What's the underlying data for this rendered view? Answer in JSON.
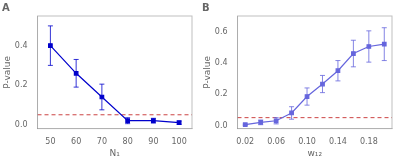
{
  "chart_data": [
    {
      "type": "line",
      "title": "A",
      "x": [
        50,
        60,
        70,
        80,
        90,
        100
      ],
      "series": [
        {
          "color": "#0000CC",
          "marker": "square",
          "line_style": "solid",
          "values": [
            0.4,
            0.26,
            0.14,
            0.02,
            0.02,
            0.01
          ],
          "errors": [
            0.1,
            0.07,
            0.065,
            0.015,
            0.012,
            0.008
          ]
        }
      ],
      "xlabel": "N₁",
      "ylabel": "P-value",
      "xlim": [
        45,
        105
      ],
      "ylim": [
        -0.02,
        0.55
      ],
      "xticks": [
        50,
        60,
        70,
        80,
        90,
        100
      ],
      "yticks": [
        {
          "value": 0.0,
          "label": "0.0"
        },
        0.2,
        0.4
      ],
      "reference_line": {
        "y": 0.05,
        "color": "#CC4444",
        "line_style": "dashed"
      },
      "grid": false
    },
    {
      "type": "line",
      "title": "B",
      "x": [
        0.02,
        0.04,
        0.06,
        0.08,
        0.1,
        0.12,
        0.14,
        0.16,
        0.18,
        0.2
      ],
      "series": [
        {
          "color": "#6666DD",
          "marker": "square",
          "line_style": "solid",
          "values": [
            0.005,
            0.02,
            0.03,
            0.08,
            0.185,
            0.265,
            0.35,
            0.46,
            0.505,
            0.52
          ],
          "errors": [
            0.004,
            0.015,
            0.02,
            0.04,
            0.055,
            0.055,
            0.065,
            0.085,
            0.1,
            0.105
          ]
        }
      ],
      "xlabel": "w₁₂",
      "ylabel": "P-value",
      "xlim": [
        0.01,
        0.21
      ],
      "ylim": [
        -0.02,
        0.7
      ],
      "xticks": [
        0.02,
        0.06,
        {
          "value": 0.1,
          "label": "0.10"
        },
        0.14,
        0.18
      ],
      "yticks": [
        {
          "value": 0.0,
          "label": "0.0"
        },
        0.2,
        0.4,
        0.6
      ],
      "reference_line": {
        "y": 0.05,
        "color": "#CC4444",
        "line_style": "dashed"
      },
      "grid": false
    }
  ]
}
